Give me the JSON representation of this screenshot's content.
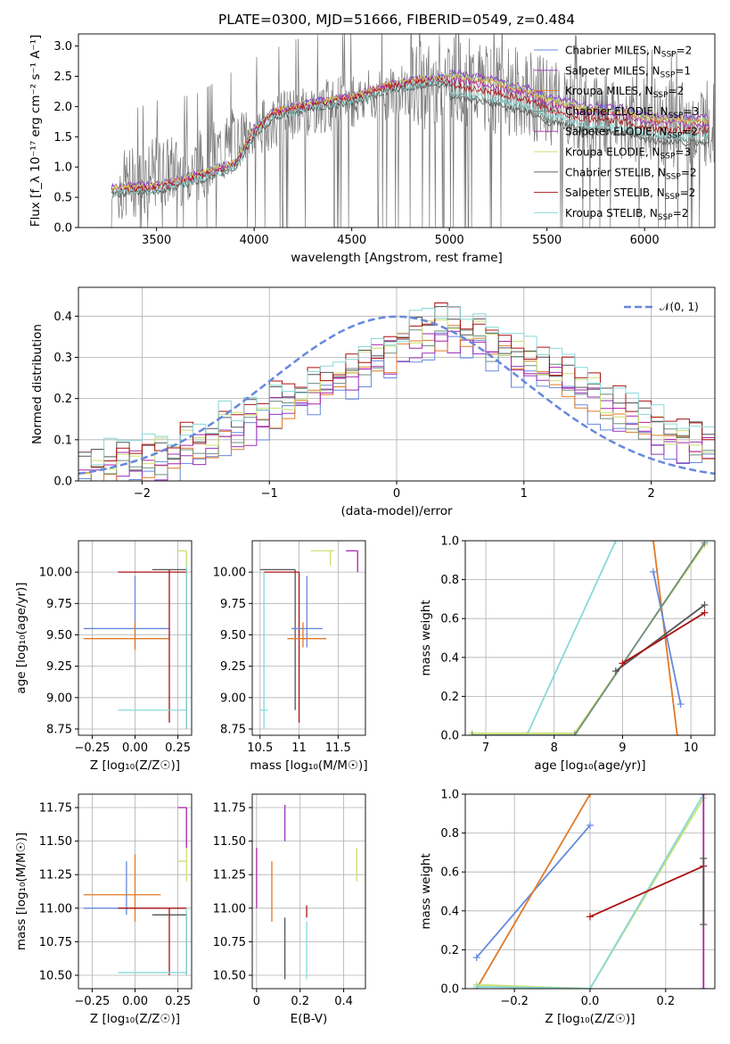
{
  "figure": {
    "title": "PLATE=0300, MJD=51666, FIBERID=0549, z=0.484"
  },
  "colors": {
    "Chabrier MILES": "#6688dd",
    "Salpeter MILES": "#9933bb",
    "Kroupa MILES": "#e07a28",
    "Chabrier ELODIE": "#6e8f80",
    "Salpeter ELODIE": "#aa22aa",
    "Kroupa ELODIE": "#c8e070",
    "Chabrier STELIB": "#555555",
    "Salpeter STELIB": "#aa1111",
    "Kroupa STELIB": "#88d8d8",
    "normal": "#6688dd",
    "data": "#777777"
  },
  "chart_data": [
    {
      "id": "spectrum",
      "type": "line",
      "xlabel": "wavelength [Angstrom, rest frame]",
      "ylabel": "Flux [f_λ 10⁻¹⁷ erg cm⁻² s⁻¹ A⁻¹]",
      "xlim": [
        3100,
        6360
      ],
      "ylim": [
        0,
        3.2
      ],
      "xticks": [
        3500,
        4000,
        4500,
        5000,
        5500,
        6000
      ],
      "yticks": [
        0.0,
        0.5,
        1.0,
        1.5,
        2.0,
        2.5,
        3.0
      ],
      "grid": false,
      "legend": "upper-right",
      "model_x": [
        3270,
        3300,
        3500,
        3700,
        3900,
        4000,
        4100,
        4300,
        4500,
        4700,
        4900,
        5000,
        5200,
        5400,
        5500,
        5700,
        5900,
        6000,
        6200,
        6300
      ],
      "model_y": [
        0.63,
        0.65,
        0.68,
        0.85,
        1.05,
        1.6,
        1.9,
        2.05,
        2.15,
        2.35,
        2.45,
        2.45,
        2.35,
        2.2,
        2.05,
        1.9,
        1.85,
        1.75,
        1.7,
        1.7
      ],
      "data_x": [
        3200,
        3300,
        3500,
        3700,
        4000,
        4200,
        4500,
        4800,
        5000,
        5200,
        5400,
        5600,
        5800,
        6000,
        6200,
        6350
      ],
      "data_y": [
        0.0,
        0.65,
        0.9,
        1.0,
        1.6,
        1.9,
        2.1,
        2.3,
        2.5,
        2.3,
        2.2,
        2.0,
        1.9,
        1.75,
        1.7,
        1.7
      ],
      "series": [
        {
          "name": "Chabrier MILES, N_SSP=2",
          "label": "Chabrier MILES, N",
          "sub": "SSP",
          "suffix": "=2",
          "offset": 0.1
        },
        {
          "name": "Salpeter MILES, N_SSP=1",
          "label": "Salpeter MILES, N",
          "sub": "SSP",
          "suffix": "=1",
          "offset": 0.12
        },
        {
          "name": "Kroupa MILES, N_SSP=2",
          "label": "Kroupa MILES, N",
          "sub": "SSP",
          "suffix": "=2",
          "offset": 0.05
        },
        {
          "name": "Chabrier ELODIE, N_SSP=3",
          "label": "Chabrier ELODIE, N",
          "sub": "SSP",
          "suffix": "=3",
          "offset": -0.25
        },
        {
          "name": "Salpeter ELODIE, N_SSP=2",
          "label": "Salpeter ELODIE, N",
          "sub": "SSP",
          "suffix": "=2",
          "offset": 0.0
        },
        {
          "name": "Kroupa ELODIE, N_SSP=3",
          "label": "Kroupa ELODIE, N",
          "sub": "SSP",
          "suffix": "=3",
          "offset": 0.08
        },
        {
          "name": "Chabrier STELIB, N_SSP=2",
          "label": "Chabrier STELIB, N",
          "sub": "SSP",
          "suffix": "=2",
          "offset": -0.3
        },
        {
          "name": "Salpeter STELIB, N_SSP=2",
          "label": "Salpeter STELIB, N",
          "sub": "SSP",
          "suffix": "=2",
          "offset": -0.1
        },
        {
          "name": "Kroupa STELIB, N_SSP=2",
          "label": "Kroupa STELIB, N",
          "sub": "SSP",
          "suffix": "=2",
          "offset": -0.2
        }
      ]
    },
    {
      "id": "residuals",
      "type": "line",
      "xlabel": "(data-model)/error",
      "ylabel": "Normed distribution",
      "xlim": [
        -2.5,
        2.5
      ],
      "ylim": [
        0,
        0.47
      ],
      "xticks": [
        -2,
        -1,
        0,
        1,
        2
      ],
      "yticks": [
        0.0,
        0.1,
        0.2,
        0.3,
        0.4
      ],
      "grid": true,
      "legend": "upper-right",
      "normal_label": "𝒩(0, 1)",
      "bins": [
        -2.5,
        -2.4,
        -2.3,
        -2.2,
        -2.1,
        -2.0,
        -1.9,
        -1.8,
        -1.7,
        -1.6,
        -1.5,
        -1.4,
        -1.3,
        -1.2,
        -1.1,
        -1.0,
        -0.9,
        -0.8,
        -0.7,
        -0.6,
        -0.5,
        -0.4,
        -0.3,
        -0.2,
        -0.1,
        0.0,
        0.1,
        0.2,
        0.3,
        0.4,
        0.5,
        0.6,
        0.7,
        0.8,
        0.9,
        1.0,
        1.1,
        1.2,
        1.3,
        1.4,
        1.5,
        1.6,
        1.7,
        1.8,
        1.9,
        2.0,
        2.1,
        2.2,
        2.3,
        2.4,
        2.5
      ],
      "hist": [
        0.02,
        0.03,
        0.03,
        0.04,
        0.04,
        0.05,
        0.06,
        0.06,
        0.08,
        0.09,
        0.1,
        0.12,
        0.13,
        0.15,
        0.16,
        0.18,
        0.19,
        0.2,
        0.22,
        0.24,
        0.25,
        0.27,
        0.28,
        0.3,
        0.31,
        0.33,
        0.35,
        0.36,
        0.37,
        0.37,
        0.36,
        0.35,
        0.33,
        0.32,
        0.3,
        0.29,
        0.27,
        0.26,
        0.24,
        0.22,
        0.21,
        0.19,
        0.17,
        0.16,
        0.14,
        0.12,
        0.11,
        0.1,
        0.09,
        0.08
      ]
    },
    {
      "id": "age_vs_Z",
      "type": "scatter",
      "xlabel": "Z [log₁₀(Z/Z☉)]",
      "ylabel": "age  [log₁₀(age/yr)]",
      "xlim": [
        -0.33,
        0.33
      ],
      "ylim": [
        8.7,
        10.25
      ],
      "xticks": [
        -0.25,
        0.0,
        0.25
      ],
      "xticklabels": [
        "−0.25",
        "0.00",
        "0.25"
      ],
      "yticks": [
        8.75,
        9.0,
        9.25,
        9.5,
        9.75,
        10.0
      ],
      "grid": true,
      "crosses": [
        {
          "x": 0.0,
          "y": 9.55,
          "x0": -0.3,
          "x1": 0.2,
          "y0": 9.4,
          "y1": 9.97,
          "c": "Chabrier MILES"
        },
        {
          "x": 0.0,
          "y": 9.47,
          "x0": -0.3,
          "x1": 0.2,
          "y0": 9.38,
          "y1": 9.6,
          "c": "Kroupa MILES"
        },
        {
          "x": 0.2,
          "y": 10.0,
          "x0": -0.1,
          "x1": 0.3,
          "y0": 8.8,
          "y1": 10.02,
          "c": "Salpeter STELIB"
        },
        {
          "x": 0.3,
          "y": 10.02,
          "x0": 0.1,
          "x1": 0.3,
          "y0": 8.75,
          "y1": 10.02,
          "c": "Chabrier STELIB"
        },
        {
          "x": 0.3,
          "y": 8.9,
          "x0": -0.1,
          "x1": 0.3,
          "y0": 8.75,
          "y1": 10.15,
          "c": "Kroupa STELIB"
        },
        {
          "x": 0.3,
          "y": 10.17,
          "x0": 0.25,
          "x1": 0.3,
          "y0": 10.05,
          "y1": 10.17,
          "c": "Kroupa ELODIE"
        }
      ]
    },
    {
      "id": "age_vs_mass",
      "type": "scatter",
      "xlabel": "mass [log₁₀(M/M☉)]",
      "ylabel": "",
      "xlim": [
        10.4,
        11.85
      ],
      "ylim": [
        8.7,
        10.25
      ],
      "xticks": [
        10.5,
        11.0,
        11.5
      ],
      "yticks": [
        8.75,
        9.0,
        9.25,
        9.5,
        9.75,
        10.0
      ],
      "grid": true,
      "crosses": [
        {
          "x": 10.95,
          "y": 10.02,
          "x0": 10.5,
          "x1": 10.95,
          "y0": 8.9,
          "y1": 10.02,
          "c": "Chabrier STELIB"
        },
        {
          "x": 11.0,
          "y": 10.0,
          "x0": 10.55,
          "x1": 11.0,
          "y0": 8.8,
          "y1": 10.0,
          "c": "Salpeter STELIB"
        },
        {
          "x": 10.55,
          "y": 8.9,
          "x0": 10.5,
          "x1": 10.6,
          "y0": 8.75,
          "y1": 10.0,
          "c": "Kroupa STELIB"
        },
        {
          "x": 11.1,
          "y": 9.55,
          "x0": 10.9,
          "x1": 11.3,
          "y0": 9.4,
          "y1": 9.97,
          "c": "Chabrier MILES"
        },
        {
          "x": 11.05,
          "y": 9.47,
          "x0": 10.85,
          "x1": 11.35,
          "y0": 9.4,
          "y1": 9.6,
          "c": "Kroupa MILES"
        },
        {
          "x": 11.4,
          "y": 10.17,
          "x0": 11.15,
          "x1": 11.45,
          "y0": 10.05,
          "y1": 10.17,
          "c": "Kroupa ELODIE"
        },
        {
          "x": 11.75,
          "y": 10.17,
          "x0": 11.6,
          "x1": 11.75,
          "y0": 10.0,
          "y1": 10.17,
          "c": "Salpeter ELODIE"
        }
      ]
    },
    {
      "id": "weight_vs_age",
      "type": "line",
      "xlabel": "age  [log₁₀(age/yr)]",
      "ylabel": "mass weight",
      "xlim": [
        6.7,
        10.35
      ],
      "ylim": [
        0,
        1.0
      ],
      "xticks": [
        7,
        8,
        9,
        10
      ],
      "yticks": [
        0.0,
        0.2,
        0.4,
        0.6,
        0.8,
        1.0
      ],
      "grid": true,
      "lines": [
        {
          "c": "Kroupa STELIB",
          "x": [
            6.8,
            7.6,
            8.9
          ],
          "y": [
            0.0,
            0.0,
            1.0
          ]
        },
        {
          "c": "Kroupa MILES",
          "x": [
            9.45,
            9.8
          ],
          "y": [
            1.0,
            0.0
          ]
        },
        {
          "c": "Chabrier MILES",
          "x": [
            9.45,
            9.85
          ],
          "y": [
            0.84,
            0.16
          ]
        },
        {
          "c": "Kroupa ELODIE",
          "x": [
            6.8,
            8.3,
            10.2
          ],
          "y": [
            0.01,
            0.01,
            0.98
          ]
        },
        {
          "c": "Chabrier ELODIE",
          "x": [
            6.8,
            8.3,
            10.2
          ],
          "y": [
            0.0,
            0.0,
            0.99
          ]
        },
        {
          "c": "Chabrier STELIB",
          "x": [
            8.9,
            10.2
          ],
          "y": [
            0.33,
            0.67
          ]
        },
        {
          "c": "Salpeter STELIB",
          "x": [
            9.0,
            10.2
          ],
          "y": [
            0.37,
            0.63
          ]
        }
      ]
    },
    {
      "id": "mass_vs_Z",
      "type": "scatter",
      "xlabel": "Z [log₁₀(Z/Z☉)]",
      "ylabel": "mass [log₁₀(M/M☉)]",
      "xlim": [
        -0.33,
        0.33
      ],
      "ylim": [
        10.4,
        11.85
      ],
      "xticks": [
        -0.25,
        0.0,
        0.25
      ],
      "xticklabels": [
        "−0.25",
        "0.00",
        "0.25"
      ],
      "yticks": [
        10.5,
        10.75,
        11.0,
        11.25,
        11.5,
        11.75
      ],
      "grid": true,
      "crosses": [
        {
          "x": -0.05,
          "y": 11.0,
          "x0": -0.3,
          "x1": 0.15,
          "y0": 10.95,
          "y1": 11.35,
          "c": "Chabrier MILES"
        },
        {
          "x": 0.0,
          "y": 11.1,
          "x0": -0.3,
          "x1": 0.15,
          "y0": 10.9,
          "y1": 11.4,
          "c": "Kroupa MILES"
        },
        {
          "x": 0.2,
          "y": 11.0,
          "x0": -0.1,
          "x1": 0.3,
          "y0": 10.5,
          "y1": 11.0,
          "c": "Salpeter STELIB"
        },
        {
          "x": 0.3,
          "y": 10.95,
          "x0": 0.1,
          "x1": 0.3,
          "y0": 10.5,
          "y1": 10.95,
          "c": "Chabrier STELIB"
        },
        {
          "x": 0.3,
          "y": 10.52,
          "x0": -0.1,
          "x1": 0.3,
          "y0": 10.5,
          "y1": 11.0,
          "c": "Kroupa STELIB"
        },
        {
          "x": 0.3,
          "y": 11.75,
          "x0": 0.25,
          "x1": 0.3,
          "y0": 11.45,
          "y1": 11.75,
          "c": "Salpeter ELODIE"
        },
        {
          "x": 0.3,
          "y": 11.35,
          "x0": 0.25,
          "x1": 0.3,
          "y0": 11.2,
          "y1": 11.45,
          "c": "Kroupa ELODIE"
        }
      ]
    },
    {
      "id": "mass_vs_ebv",
      "type": "scatter",
      "xlabel": "E(B-V)",
      "ylabel": "",
      "xlim": [
        -0.02,
        0.5
      ],
      "ylim": [
        10.4,
        11.85
      ],
      "xticks": [
        0.0,
        0.2,
        0.4
      ],
      "yticks": [
        10.5,
        10.75,
        11.0,
        11.25,
        11.5,
        11.75
      ],
      "grid": true,
      "vlines": [
        {
          "x": 0.0,
          "y0": 11.0,
          "y1": 11.45,
          "c": "Salpeter ELODIE"
        },
        {
          "x": 0.07,
          "y0": 10.9,
          "y1": 11.35,
          "c": "Kroupa MILES"
        },
        {
          "x": 0.13,
          "y0": 11.5,
          "y1": 11.77,
          "c": "Salpeter MILES"
        },
        {
          "x": 0.13,
          "y0": 10.47,
          "y1": 10.93,
          "c": "Chabrier STELIB"
        },
        {
          "x": 0.23,
          "y0": 10.93,
          "y1": 11.02,
          "c": "Salpeter STELIB"
        },
        {
          "x": 0.23,
          "y0": 10.47,
          "y1": 10.9,
          "c": "Kroupa STELIB"
        },
        {
          "x": 0.46,
          "y0": 11.2,
          "y1": 11.45,
          "c": "Kroupa ELODIE"
        }
      ]
    },
    {
      "id": "weight_vs_Z",
      "type": "line",
      "xlabel": "Z [log₁₀(Z/Z☉)]",
      "ylabel": "mass weight",
      "xlim": [
        -0.33,
        0.33
      ],
      "ylim": [
        0,
        1.0
      ],
      "xticks": [
        -0.2,
        0.0,
        0.2
      ],
      "xticklabels": [
        "−0.2",
        "0.0",
        "0.2"
      ],
      "yticks": [
        0.0,
        0.2,
        0.4,
        0.6,
        0.8,
        1.0
      ],
      "grid": true,
      "lines": [
        {
          "c": "Chabrier MILES",
          "x": [
            -0.3,
            0.0
          ],
          "y": [
            0.16,
            0.84
          ]
        },
        {
          "c": "Kroupa MILES",
          "x": [
            -0.3,
            0.0
          ],
          "y": [
            0.0,
            1.0
          ]
        },
        {
          "c": "Kroupa ELODIE",
          "x": [
            -0.3,
            0.0,
            0.3
          ],
          "y": [
            0.02,
            0.0,
            0.98
          ]
        },
        {
          "c": "Kroupa STELIB",
          "x": [
            -0.3,
            0.0,
            0.3
          ],
          "y": [
            0.01,
            0.0,
            1.0
          ]
        },
        {
          "c": "Salpeter STELIB",
          "x": [
            0.0,
            0.3
          ],
          "y": [
            0.37,
            0.63
          ]
        },
        {
          "c": "Salpeter ELODIE",
          "x": [
            0.3,
            0.3
          ],
          "y": [
            0.0,
            1.0
          ]
        },
        {
          "c": "Chabrier STELIB",
          "x": [
            0.3,
            0.3
          ],
          "y": [
            0.33,
            0.67
          ]
        }
      ]
    }
  ]
}
